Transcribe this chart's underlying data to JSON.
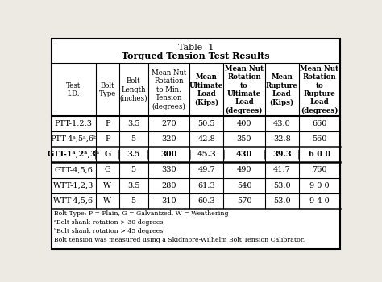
{
  "title_line1": "Table  1",
  "title_line2": "Torqued Tension Test Results",
  "col_headers": [
    "Test\nI.D.",
    "Bolt\nType",
    "Bolt\nLength\n(inches)",
    "Mean Nut\nRotation\nto Min.\nTension\n(degrees)",
    "Mean\nUltimate\nLoad\n(Kips)",
    "Mean Nut\nRotation\nto\nUltimate\nLoad\n(degrees)",
    "Mean\nRupture\nLoad\n(Kips)",
    "Mean Nut\nRotation\nto\nRupture\nLoad\n(degrees)"
  ],
  "col_widths_rel": [
    1.45,
    0.75,
    0.95,
    1.35,
    1.1,
    1.35,
    1.1,
    1.35
  ],
  "rows": [
    [
      "PTT-1,2,3",
      "P",
      "3.5",
      "270",
      "50.5",
      "400",
      "43.0",
      "660"
    ],
    [
      "PTT-4ᵃ,5ᵃ,6ᵇ",
      "P",
      "5",
      "320",
      "42.8",
      "350",
      "32.8",
      "560"
    ],
    [
      "GTT-1ᵃ,2ᵃ,3ᵃ",
      "G",
      "3.5",
      "300",
      "45.3",
      "430",
      "39.3",
      "6 0 0"
    ],
    [
      "GTT-4,5,6",
      "G",
      "5",
      "330",
      "49.7",
      "490",
      "41.7",
      "760"
    ],
    [
      "WTT-1,2,3",
      "W",
      "3.5",
      "280",
      "61.3",
      "540",
      "53.0",
      "9 0 0"
    ],
    [
      "WTT-4,5,6",
      "W",
      "5",
      "310",
      "60.3",
      "570",
      "53.0",
      "9 4 0"
    ]
  ],
  "gtt_row_idx": 2,
  "header_bold_cols": [
    4,
    5,
    6,
    7
  ],
  "footnotes": [
    "Bolt Type: P = Plain, G = Galvanized, W = Weathering",
    "ᵃBolt shank rotation > 30 degrees",
    "ᵇBolt shank rotation > 45 degrees",
    "Bolt tension was measured using a Skidmore-Wilhelm Bolt Tension Calibrator."
  ],
  "bg_color": "#ede9e3",
  "table_bg": "#ffffff",
  "outer_lw": 1.5,
  "inner_lw": 0.8,
  "heavy_lw": 1.8,
  "title_fs": 8.0,
  "header_fs": 6.2,
  "data_fs": 7.0,
  "fn_fs": 5.6
}
